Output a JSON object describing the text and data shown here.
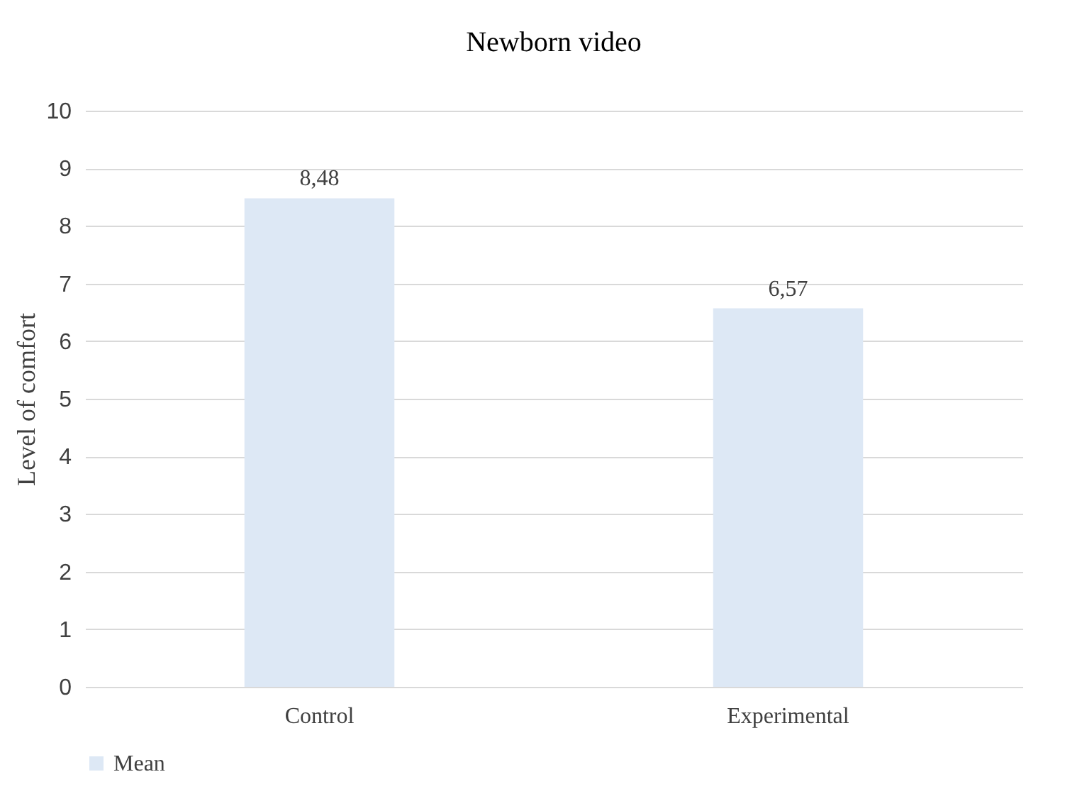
{
  "chart_data": {
    "type": "bar",
    "title": "Newborn video",
    "ylabel": "Level of comfort",
    "categories": [
      "Control",
      "Experimental"
    ],
    "series": [
      {
        "name": "Mean",
        "color": "#dde8f5",
        "values": [
          8.48,
          6.57
        ],
        "value_labels": [
          "8,48",
          "6,57"
        ]
      }
    ],
    "ylim": [
      0,
      10
    ],
    "yticks": [
      0,
      1,
      2,
      3,
      4,
      5,
      6,
      7,
      8,
      9,
      10
    ],
    "grid": "y",
    "legend": "bottom"
  }
}
